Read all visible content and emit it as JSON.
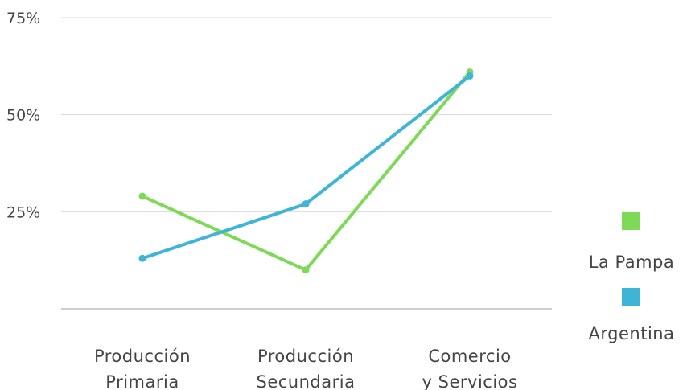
{
  "chart_data": {
    "type": "line",
    "categories": [
      [
        "Producción",
        "Primaria"
      ],
      [
        "Producción",
        "Secundaria"
      ],
      [
        "Comercio",
        "y Servicios"
      ]
    ],
    "series": [
      {
        "name": "La Pampa",
        "values": [
          29,
          10,
          61
        ],
        "color": "#7ed957"
      },
      {
        "name": "Argentina",
        "values": [
          13,
          27,
          60
        ],
        "color": "#3eb5d6"
      }
    ],
    "y_ticks": [
      {
        "value": 25,
        "label": "25%"
      },
      {
        "value": 50,
        "label": "50%"
      },
      {
        "value": 75,
        "label": "75%"
      }
    ],
    "ylim": [
      0,
      75
    ],
    "grid": true,
    "legend_position": "right",
    "title": "",
    "xlabel": "",
    "ylabel": ""
  },
  "colors": {
    "grid": "#d9d9d9",
    "axis": "#bdbdbd",
    "text": "#444444"
  }
}
